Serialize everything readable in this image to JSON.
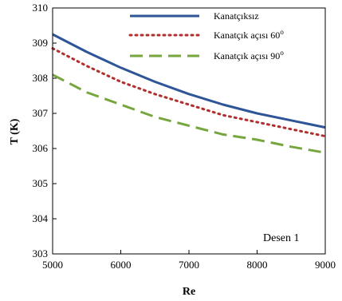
{
  "chart_data": {
    "type": "line",
    "xlabel": "Re",
    "ylabel": "T (K)",
    "xlim": [
      5000,
      9000
    ],
    "ylim": [
      303,
      310
    ],
    "x_ticks": [
      5000,
      6000,
      7000,
      8000,
      9000
    ],
    "y_ticks": [
      303,
      304,
      305,
      306,
      307,
      308,
      309,
      310
    ],
    "grid": false,
    "legend_position": "top-right",
    "annotation": "Desen 1",
    "x": [
      5000,
      5500,
      6000,
      6500,
      7000,
      7500,
      8000,
      8500,
      9000
    ],
    "series": [
      {
        "name": "Kanatçıksız",
        "style": "solid",
        "color": "#2e5597",
        "values": [
          309.25,
          308.75,
          308.3,
          307.9,
          307.55,
          307.25,
          307.0,
          306.8,
          306.6
        ]
      },
      {
        "name": "Kanatçık açısı 60",
        "name_superscript": "o",
        "style": "dotted",
        "color": "#b22f2f",
        "values": [
          308.85,
          308.35,
          307.9,
          307.55,
          307.25,
          306.95,
          306.75,
          306.55,
          306.35
        ]
      },
      {
        "name": "Kanatçık açısı 90",
        "name_superscript": "o",
        "style": "dashed",
        "color": "#77a63f",
        "values": [
          308.1,
          307.6,
          307.25,
          306.9,
          306.65,
          306.4,
          306.25,
          306.05,
          305.88
        ]
      }
    ]
  }
}
